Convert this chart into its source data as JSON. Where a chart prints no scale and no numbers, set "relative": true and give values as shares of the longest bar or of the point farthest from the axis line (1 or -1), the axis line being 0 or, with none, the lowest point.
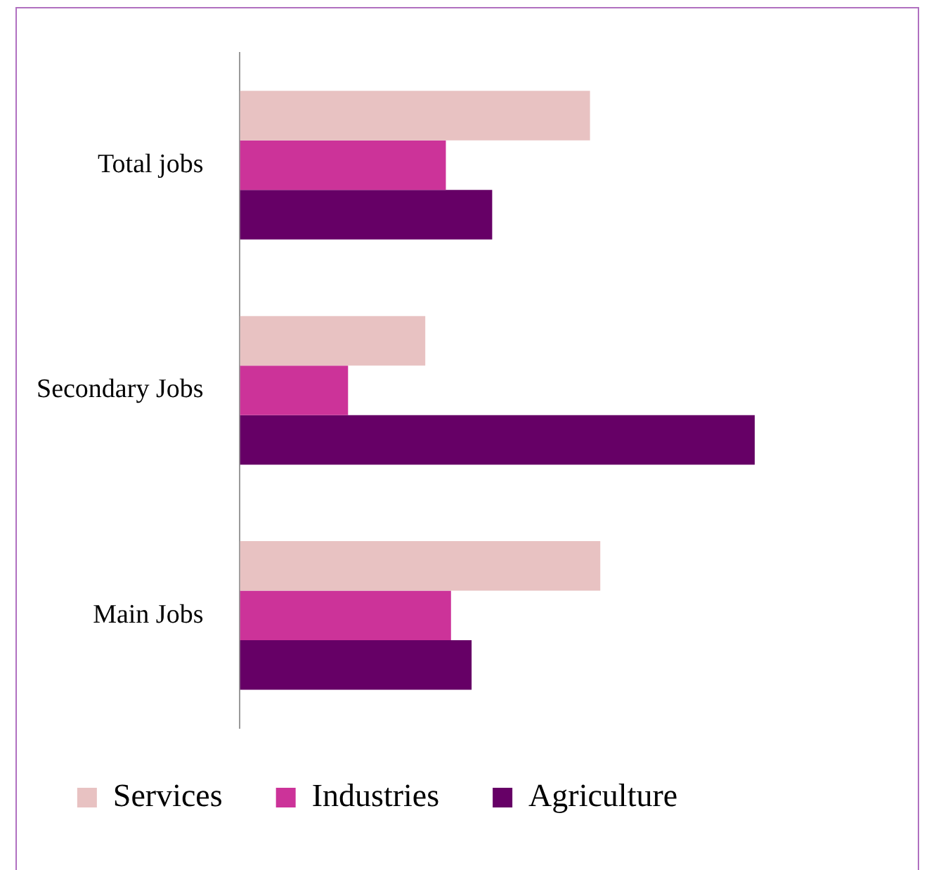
{
  "chart_data": {
    "type": "bar",
    "orientation": "horizontal",
    "relative": true,
    "categories": [
      "Total jobs",
      "Secondary Jobs",
      "Main Jobs"
    ],
    "series": [
      {
        "name": "Services",
        "color": "#e8c2c2",
        "values": [
          0.68,
          0.36,
          0.7
        ]
      },
      {
        "name": "Industries",
        "color": "#cc3399",
        "values": [
          0.4,
          0.21,
          0.41
        ]
      },
      {
        "name": "Agriculture",
        "color": "#660066",
        "values": [
          0.49,
          1,
          0.45
        ]
      }
    ],
    "legend": "bottom"
  }
}
